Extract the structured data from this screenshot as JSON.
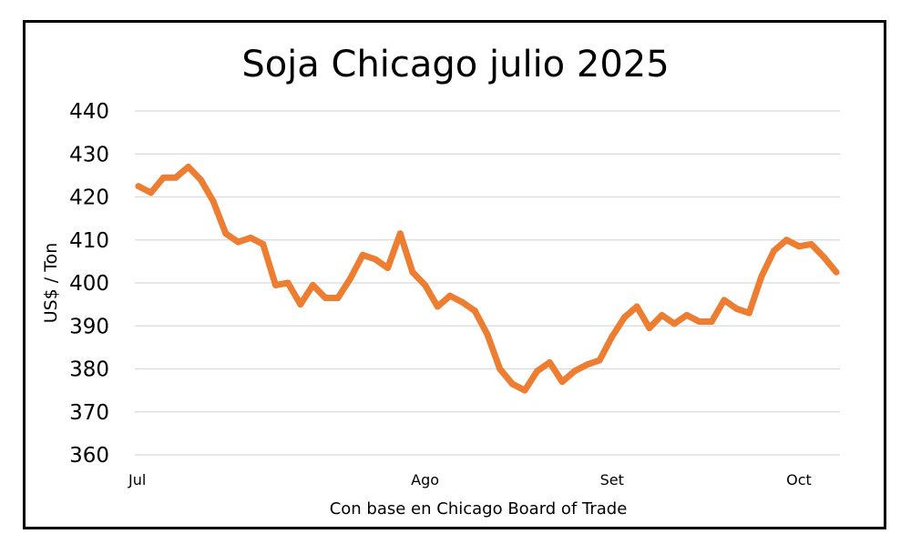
{
  "chart_data": {
    "type": "line",
    "title": "Soja Chicago julio 2025",
    "xlabel": "Con base en Chicago Board of Trade",
    "ylabel": "US$ / Ton",
    "ylim": [
      360,
      440
    ],
    "yticks": [
      360,
      370,
      380,
      390,
      400,
      410,
      420,
      430,
      440
    ],
    "grid": true,
    "color": "#ED7D31",
    "x_tick_labels": [
      {
        "label": "Jul",
        "index": 0
      },
      {
        "label": "Ago",
        "index": 23
      },
      {
        "label": "Set",
        "index": 38
      },
      {
        "label": "Oct",
        "index": 53
      }
    ],
    "series": [
      {
        "name": "Soja Chicago",
        "values": [
          422.5,
          421,
          424.5,
          424.5,
          427,
          424,
          419,
          411.5,
          409.5,
          410.5,
          409,
          399.5,
          400,
          395,
          399.5,
          396.5,
          396.5,
          401,
          406.5,
          405.5,
          403.5,
          411.5,
          402.5,
          399.5,
          394.5,
          397,
          395.5,
          393.5,
          388,
          380,
          376.5,
          375,
          379.5,
          381.5,
          377,
          379.5,
          381,
          382,
          387.5,
          392,
          394.5,
          389.5,
          392.5,
          390.5,
          392.5,
          391,
          391,
          396,
          394,
          393,
          401.5,
          407.5,
          410,
          408.5,
          409,
          406,
          402.5
        ]
      }
    ]
  }
}
